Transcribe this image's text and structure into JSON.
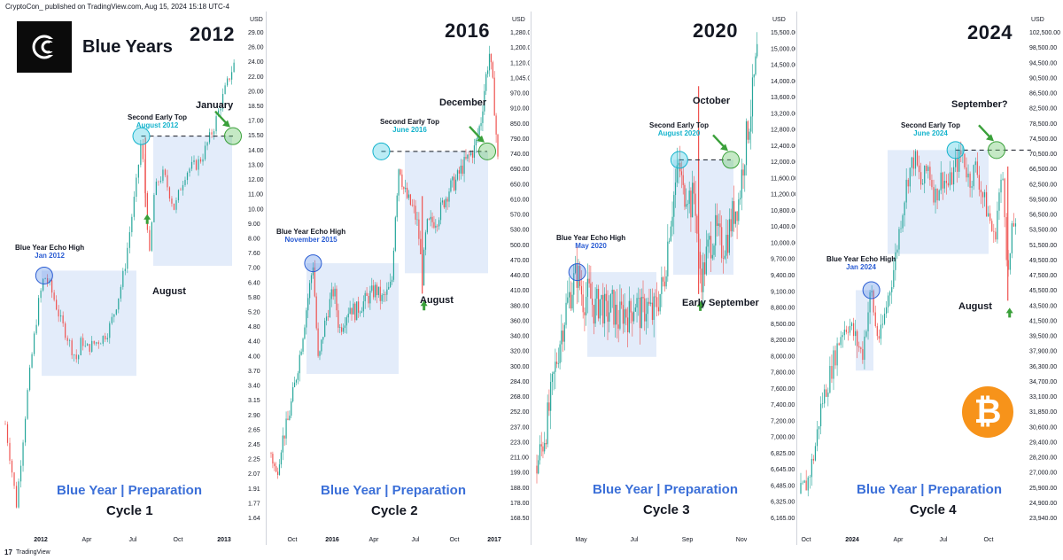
{
  "header": {
    "publisher": "CryptoCon_ published on TradingView.com, Aug 15, 2024 15:18 UTC-4"
  },
  "brand": {
    "title": "Blue Years"
  },
  "footer": {
    "logo": "17",
    "text": "TradingView"
  },
  "colors": {
    "blue": "#2a5cd3",
    "cyan": "#14b3cc",
    "green": "#3aa03a",
    "box": "#e3ecfa",
    "bull": "#26a69a",
    "bear": "#ef5350",
    "btc": "#f7931a"
  },
  "chart_data": [
    {
      "type": "candlestick",
      "title": "2012",
      "annotation_subtitle": "Blue Year | Preparation",
      "cycle_label": "Cycle 1",
      "ylabel": "USD",
      "yscale": "log",
      "ylim": [
        1.6,
        30
      ],
      "y_ticks": [
        "29.00",
        "26.00",
        "24.00",
        "22.00",
        "20.00",
        "18.50",
        "17.00",
        "15.50",
        "14.00",
        "13.00",
        "12.00",
        "11.00",
        "10.00",
        "9.00",
        "8.00",
        "7.60",
        "7.00",
        "6.40",
        "5.80",
        "5.20",
        "4.80",
        "4.40",
        "4.00",
        "3.70",
        "3.40",
        "3.15",
        "2.90",
        "2.65",
        "2.45",
        "2.25",
        "2.07",
        "1.91",
        "1.77",
        "1.64"
      ],
      "x_ticks": [
        "2012",
        "Apr",
        "Jul",
        "Oct",
        "2013"
      ],
      "echo": {
        "label": "Blue Year Echo High",
        "date": "Jan 2012",
        "value": 7.0
      },
      "second_top": {
        "label": "Second Early Top",
        "date": "August 2012",
        "value": 15.5
      },
      "dip_label": "August",
      "target_label": "January",
      "path": [
        [
          0,
          3.0
        ],
        [
          4,
          2.4
        ],
        [
          8,
          1.9
        ],
        [
          12,
          2.6
        ],
        [
          16,
          3.6
        ],
        [
          20,
          4.7
        ],
        [
          24,
          6.0
        ],
        [
          28,
          7.0
        ],
        [
          32,
          6.6
        ],
        [
          36,
          6.0
        ],
        [
          40,
          5.4
        ],
        [
          44,
          5.0
        ],
        [
          48,
          4.6
        ],
        [
          52,
          4.3
        ],
        [
          55,
          4.9
        ],
        [
          58,
          4.6
        ],
        [
          62,
          4.7
        ],
        [
          66,
          4.8
        ],
        [
          70,
          4.9
        ],
        [
          74,
          5.1
        ],
        [
          78,
          5.6
        ],
        [
          82,
          6.3
        ],
        [
          86,
          7.3
        ],
        [
          90,
          9.2
        ],
        [
          94,
          11.5
        ],
        [
          98,
          15.2
        ],
        [
          101,
          11.0
        ],
        [
          104,
          7.8
        ],
        [
          107,
          11.0
        ],
        [
          110,
          12.0
        ],
        [
          114,
          12.5
        ],
        [
          118,
          11.3
        ],
        [
          122,
          10.2
        ],
        [
          126,
          11.5
        ],
        [
          130,
          12.6
        ],
        [
          134,
          13.0
        ],
        [
          138,
          13.2
        ],
        [
          142,
          13.8
        ],
        [
          146,
          15.0
        ],
        [
          150,
          16.2
        ],
        [
          154,
          18.0
        ],
        [
          158,
          20.0
        ],
        [
          162,
          22.0
        ],
        [
          166,
          24.0
        ]
      ]
    },
    {
      "type": "candlestick",
      "title": "2016",
      "annotation_subtitle": "Blue Year | Preparation",
      "cycle_label": "Cycle 2",
      "ylabel": "USD",
      "yscale": "log",
      "ylim": [
        165,
        1350
      ],
      "y_ticks": [
        "1,280.00",
        "1,200.00",
        "1,120.00",
        "1,045.00",
        "970.00",
        "910.00",
        "850.00",
        "790.00",
        "740.00",
        "690.00",
        "650.00",
        "610.00",
        "570.00",
        "530.00",
        "500.00",
        "470.00",
        "440.00",
        "410.00",
        "380.00",
        "360.00",
        "340.00",
        "320.00",
        "300.00",
        "284.00",
        "268.00",
        "252.00",
        "237.00",
        "223.00",
        "211.00",
        "199.00",
        "188.00",
        "178.00",
        "168.50"
      ],
      "x_ticks": [
        "Oct",
        "2016",
        "Apr",
        "Jul",
        "Oct",
        "2017"
      ],
      "echo": {
        "label": "Blue Year Echo High",
        "date": "November 2015",
        "value": 500
      },
      "second_top": {
        "label": "Second Early Top",
        "date": "June 2016",
        "value": 790
      },
      "dip_label": "August",
      "target_label": "December",
      "path": [
        [
          0,
          230
        ],
        [
          5,
          210
        ],
        [
          10,
          240
        ],
        [
          16,
          262
        ],
        [
          22,
          300
        ],
        [
          28,
          350
        ],
        [
          34,
          420
        ],
        [
          40,
          500
        ],
        [
          45,
          330
        ],
        [
          50,
          380
        ],
        [
          55,
          420
        ],
        [
          60,
          450
        ],
        [
          65,
          380
        ],
        [
          70,
          400
        ],
        [
          75,
          420
        ],
        [
          80,
          410
        ],
        [
          85,
          420
        ],
        [
          90,
          430
        ],
        [
          95,
          440
        ],
        [
          100,
          450
        ],
        [
          105,
          430
        ],
        [
          110,
          440
        ],
        [
          115,
          460
        ],
        [
          118,
          600
        ],
        [
          122,
          760
        ],
        [
          126,
          680
        ],
        [
          130,
          650
        ],
        [
          136,
          620
        ],
        [
          140,
          580
        ],
        [
          144,
          470
        ],
        [
          148,
          580
        ],
        [
          152,
          590
        ],
        [
          158,
          600
        ],
        [
          164,
          640
        ],
        [
          170,
          680
        ],
        [
          176,
          700
        ],
        [
          182,
          740
        ],
        [
          188,
          770
        ],
        [
          194,
          800
        ],
        [
          200,
          900
        ],
        [
          204,
          1050
        ],
        [
          208,
          1180
        ],
        [
          212,
          1000
        ],
        [
          216,
          760
        ]
      ]
    },
    {
      "type": "candlestick",
      "title": "2020",
      "annotation_subtitle": "Blue Year | Preparation",
      "cycle_label": "Cycle 3",
      "ylabel": "USD",
      "yscale": "log",
      "ylim": [
        6050,
        16200
      ],
      "y_ticks": [
        "15,500.00",
        "15,000.00",
        "14,500.00",
        "14,000.00",
        "13,600.00",
        "13,200.00",
        "12,800.00",
        "12,400.00",
        "12,000.00",
        "11,600.00",
        "11,200.00",
        "10,800.00",
        "10,400.00",
        "10,000.00",
        "9,700.00",
        "9,400.00",
        "9,100.00",
        "8,800.00",
        "8,500.00",
        "8,200.00",
        "8,000.00",
        "7,800.00",
        "7,600.00",
        "7,400.00",
        "7,200.00",
        "7,000.00",
        "6,825.00",
        "6,645.00",
        "6,485.00",
        "6,325.00",
        "6,165.00"
      ],
      "x_ticks": [
        "May",
        "Jul",
        "Sep",
        "Nov"
      ],
      "echo": {
        "label": "Blue Year Echo High",
        "date": "May 2020",
        "value": 10000
      },
      "second_top": {
        "label": "Second Early Top",
        "date": "August 2020",
        "value": 12400
      },
      "dip_label": "Early September",
      "target_label": "October",
      "path": [
        [
          0,
          6900
        ],
        [
          6,
          7200
        ],
        [
          12,
          7600
        ],
        [
          18,
          8200
        ],
        [
          24,
          8800
        ],
        [
          30,
          9300
        ],
        [
          36,
          9700
        ],
        [
          42,
          10000
        ],
        [
          48,
          9500
        ],
        [
          54,
          9600
        ],
        [
          60,
          9300
        ],
        [
          66,
          9500
        ],
        [
          72,
          9200
        ],
        [
          78,
          9400
        ],
        [
          84,
          9100
        ],
        [
          90,
          9300
        ],
        [
          96,
          9200
        ],
        [
          102,
          9500
        ],
        [
          108,
          9200
        ],
        [
          114,
          9400
        ],
        [
          120,
          9200
        ],
        [
          126,
          9500
        ],
        [
          132,
          9800
        ],
        [
          138,
          11000
        ],
        [
          144,
          11800
        ],
        [
          148,
          12300
        ],
        [
          152,
          11600
        ],
        [
          156,
          11800
        ],
        [
          160,
          11400
        ],
        [
          164,
          11700
        ],
        [
          168,
          10200
        ],
        [
          172,
          9900
        ],
        [
          176,
          10300
        ],
        [
          180,
          10600
        ],
        [
          186,
          10800
        ],
        [
          192,
          10500
        ],
        [
          198,
          10700
        ],
        [
          204,
          11200
        ],
        [
          210,
          11500
        ],
        [
          214,
          12300
        ],
        [
          218,
          13000
        ],
        [
          222,
          13600
        ],
        [
          226,
          14500
        ],
        [
          230,
          15500
        ]
      ]
    },
    {
      "type": "candlestick",
      "title": "2024",
      "annotation_subtitle": "Blue Year | Preparation",
      "cycle_label": "Cycle 4",
      "ylabel": "USD",
      "yscale": "log",
      "ylim": [
        23500,
        108000
      ],
      "y_ticks": [
        "102,500.00",
        "98,500.00",
        "94,500.00",
        "90,500.00",
        "86,500.00",
        "82,500.00",
        "78,500.00",
        "74,500.00",
        "70,500.00",
        "66,500.00",
        "62,500.00",
        "59,500.00",
        "56,500.00",
        "53,500.00",
        "51,500.00",
        "49,500.00",
        "47,500.00",
        "45,500.00",
        "43,500.00",
        "41,500.00",
        "39,500.00",
        "37,900.00",
        "36,300.00",
        "34,700.00",
        "33,100.00",
        "31,850.00",
        "30,600.00",
        "29,400.00",
        "28,200.00",
        "27,000.00",
        "25,900.00",
        "24,900.00",
        "23,940.00"
      ],
      "x_ticks": [
        "Oct",
        "2024",
        "Apr",
        "Jul",
        "Oct"
      ],
      "echo": {
        "label": "Blue Year Echo High",
        "date": "Jan 2024",
        "value": 48500
      },
      "second_top": {
        "label": "Second Early Top",
        "date": "June 2024",
        "value": 73500
      },
      "dip_label": "August",
      "target_label": "September?",
      "path": [
        [
          0,
          26500
        ],
        [
          6,
          27500
        ],
        [
          12,
          30000
        ],
        [
          18,
          34500
        ],
        [
          24,
          37000
        ],
        [
          30,
          40000
        ],
        [
          36,
          43000
        ],
        [
          42,
          44000
        ],
        [
          48,
          42000
        ],
        [
          54,
          40000
        ],
        [
          58,
          44500
        ],
        [
          62,
          48500
        ],
        [
          66,
          43000
        ],
        [
          70,
          42000
        ],
        [
          76,
          47000
        ],
        [
          82,
          52000
        ],
        [
          88,
          60000
        ],
        [
          94,
          68000
        ],
        [
          100,
          72000
        ],
        [
          106,
          66000
        ],
        [
          112,
          70000
        ],
        [
          118,
          64000
        ],
        [
          124,
          68000
        ],
        [
          130,
          66000
        ],
        [
          136,
          70000
        ],
        [
          142,
          73000
        ],
        [
          148,
          67000
        ],
        [
          154,
          70000
        ],
        [
          160,
          64000
        ],
        [
          166,
          60000
        ],
        [
          170,
          56000
        ],
        [
          174,
          64000
        ],
        [
          178,
          68000
        ],
        [
          182,
          50000
        ],
        [
          186,
          58000
        ],
        [
          190,
          61000
        ]
      ]
    }
  ]
}
